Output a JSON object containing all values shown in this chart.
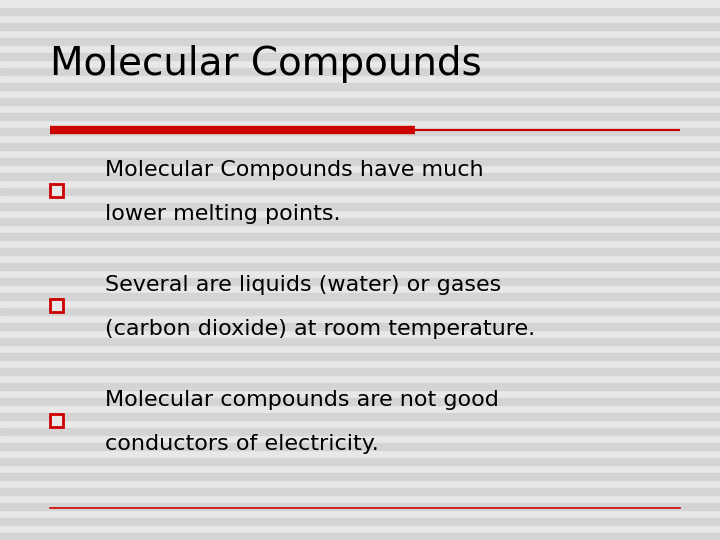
{
  "title": "Molecular Compounds",
  "title_fontsize": 28,
  "title_color": "#000000",
  "background_color": "#e8e8e8",
  "accent_color_dark": "#cc0000",
  "bullet_color": "#cc0000",
  "text_color": "#000000",
  "bullet_fontsize": 16,
  "bullets": [
    [
      "Molecular Compounds have much",
      "lower melting points."
    ],
    [
      "Several are liquids (water) or gases",
      "(carbon dioxide) at room temperature."
    ],
    [
      "Molecular compounds are not good",
      "conductors of electricity."
    ]
  ],
  "stripe_color": "#d4d4d4",
  "n_stripes": 36
}
